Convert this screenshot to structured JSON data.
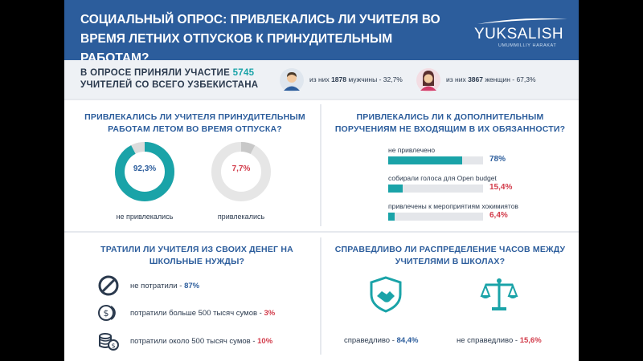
{
  "header": {
    "title": "СОЦИАЛЬНЫЙ ОПРОС: ПРИВЛЕКАЛИСЬ ЛИ УЧИТЕЛЯ ВО ВРЕМЯ ЛЕТНИХ ОТПУСКОВ К ПРИНУДИТЕЛЬНЫМ РАБОТАМ?",
    "logo_text": "YUKSALISH",
    "logo_sub": "UMUMMILLIY HARAKAT"
  },
  "survey": {
    "line1_prefix": "В ОПРОСЕ ПРИНЯЛИ УЧАСТИЕ ",
    "total": "5745",
    "line2": "УЧИТЕЛЕЙ СО ВСЕГО УЗБЕКИСТАНА",
    "men_prefix": "из них ",
    "men_count": "1878",
    "men_suffix": " мужчины - 32,7%",
    "women_prefix": "из них ",
    "women_count": "3867",
    "women_suffix": " женщин - 67,3%"
  },
  "colors": {
    "blue": "#2c5d9c",
    "teal": "#1aa3a8",
    "red": "#d23b4a",
    "gray": "#dcdcdc"
  },
  "chart_data": [
    {
      "type": "pie",
      "title": "ПРИВЛЕКАЛИСЬ ЛИ УЧИТЕЛЯ ПРИНУДИТЕЛЬНЫМ РАБОТАМ ЛЕТОМ ВО ВРЕМЯ ОТПУСКА?",
      "slices": [
        {
          "label": "не привлекались",
          "value": 92.3,
          "display": "92,3%"
        },
        {
          "label": "привлекались",
          "value": 7.7,
          "display": "7,7%"
        }
      ]
    },
    {
      "type": "bar",
      "title": "ПРИВЛЕКАЛИСЬ ЛИ К ДОПОЛНИТЕЛЬНЫМ ПОРУЧЕНИЯМ НЕ ВХОДЯЩИМ В ИХ ОБЯЗАННОСТИ?",
      "categories": [
        "не привлечено",
        "собирали голоса для Open budget",
        "привлечены к мероприятиям хокимиятов"
      ],
      "values": [
        78,
        15.4,
        6.4
      ],
      "displays": [
        "78%",
        "15,4%",
        "6,4%"
      ]
    },
    {
      "type": "table",
      "title": "ТРАТИЛИ ЛИ УЧИТЕЛЯ ИЗ СВОИХ ДЕНЕГ НА ШКОЛЬНЫЕ НУЖДЫ?",
      "rows": [
        {
          "label": "не потратили - ",
          "value": 87,
          "display": "87%",
          "icon": "no-icon"
        },
        {
          "label": "потратили больше 500 тысяч сумов - ",
          "value": 3,
          "display": "3%",
          "icon": "coins-icon"
        },
        {
          "label": "потратили около 500 тысяч сумов - ",
          "value": 10,
          "display": "10%",
          "icon": "coin-stack-icon"
        }
      ]
    },
    {
      "type": "table",
      "title": "СПРАВЕДЛИВО ЛИ РАСПРЕДЕЛЕНИЕ ЧАСОВ МЕЖДУ УЧИТЕЛЯМИ В ШКОЛАХ?",
      "rows": [
        {
          "label": "справедливо - ",
          "value": 84.4,
          "display": "84,4%",
          "icon": "handshake-shield-icon"
        },
        {
          "label": "не справедливо - ",
          "value": 15.6,
          "display": "15,6%",
          "icon": "scales-icon"
        }
      ]
    }
  ]
}
